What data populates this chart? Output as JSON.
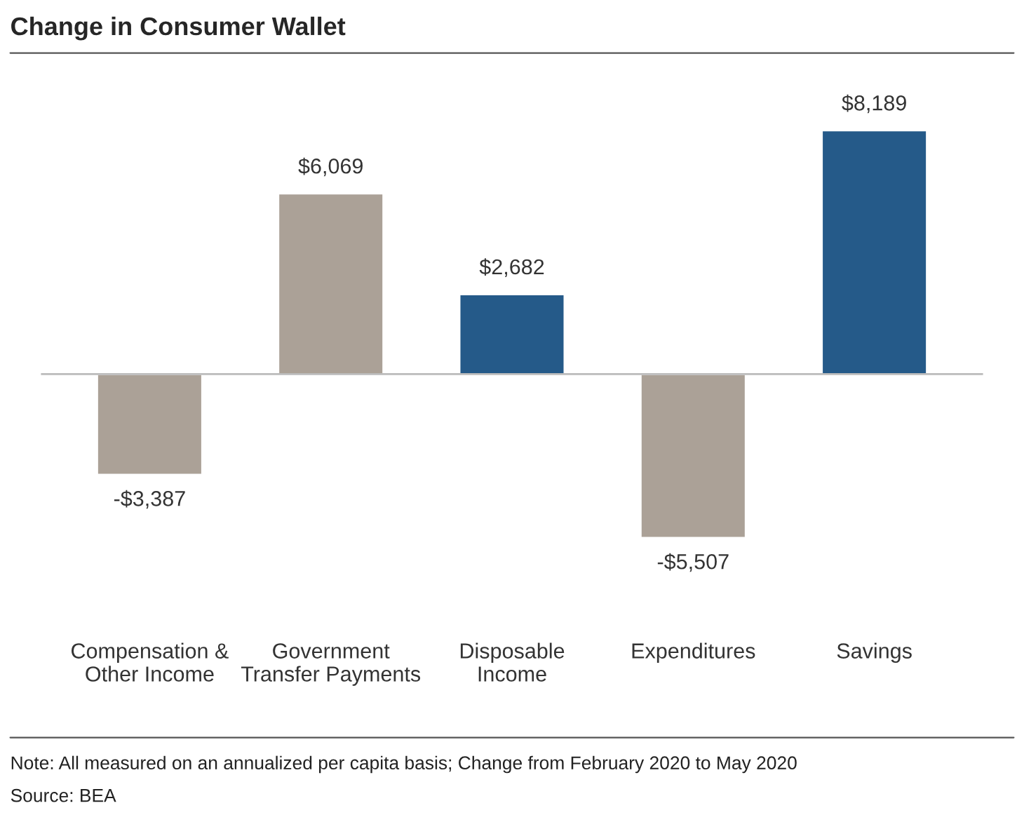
{
  "chart_data": {
    "type": "bar",
    "title": "Change in Consumer Wallet",
    "categories": [
      "Compensation &\nOther Income",
      "Government\nTransfer Payments",
      "Disposable\nIncome",
      "Expenditures",
      "Savings"
    ],
    "values": [
      -3387,
      6069,
      2682,
      -5507,
      8189
    ],
    "colors": [
      "#aba197",
      "#aba197",
      "#255a89",
      "#aba197",
      "#255a89"
    ],
    "value_labels": [
      "-$3,387",
      "$6,069",
      "$2,682",
      "-$5,507",
      "$8,189"
    ],
    "annotations": [
      "Note: All measured on an annualized per capita basis; Change from February 2020 to May 2020",
      "Source: BEA"
    ],
    "grid": false
  }
}
